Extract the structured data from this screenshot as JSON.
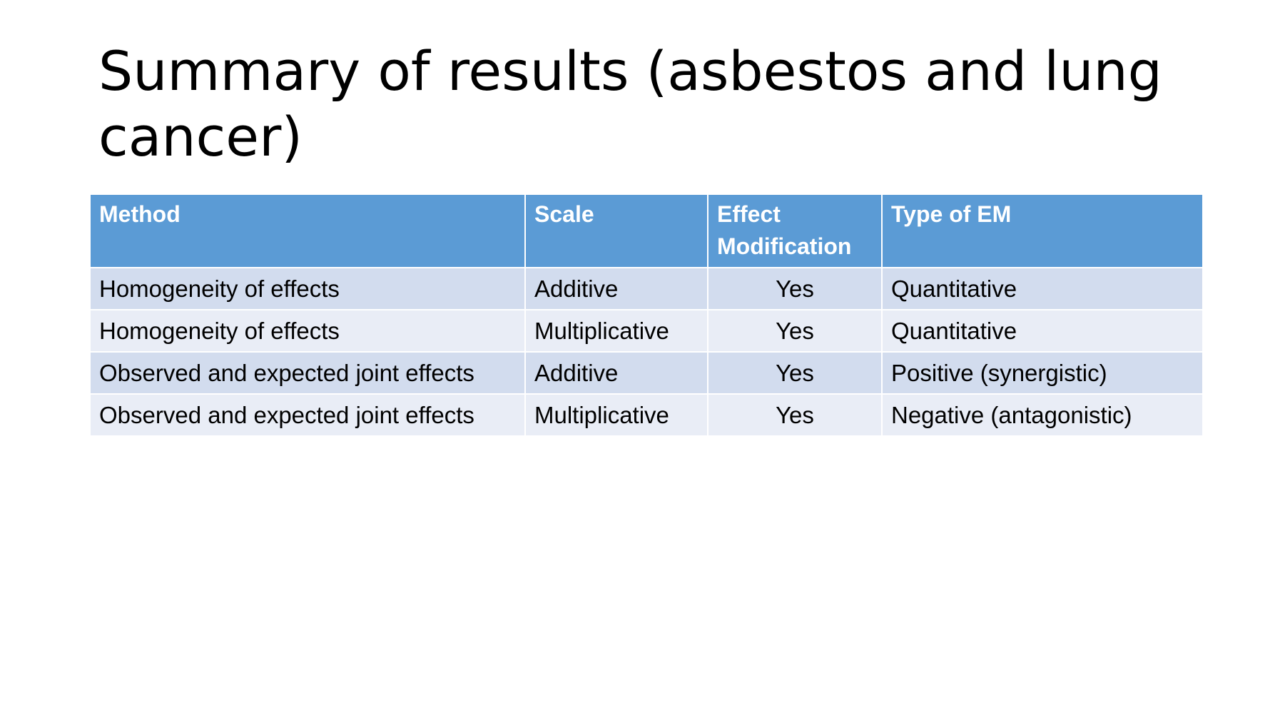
{
  "slide": {
    "title": "Summary of results (asbestos and lung cancer)"
  },
  "table": {
    "headers": {
      "method": "Method",
      "scale": "Scale",
      "effect_modification": "Effect Modification",
      "type_of_em": "Type of EM"
    },
    "rows": [
      {
        "method": "Homogeneity of effects",
        "scale": "Additive",
        "effect_modification": "Yes",
        "type_of_em": "Quantitative"
      },
      {
        "method": "Homogeneity of effects",
        "scale": "Multiplicative",
        "effect_modification": "Yes",
        "type_of_em": "Quantitative"
      },
      {
        "method": "Observed and expected joint effects",
        "scale": "Additive",
        "effect_modification": "Yes",
        "type_of_em": "Positive (synergistic)"
      },
      {
        "method": "Observed and expected joint effects",
        "scale": "Multiplicative",
        "effect_modification": "Yes",
        "type_of_em": "Negative (antagonistic)"
      }
    ]
  },
  "colors": {
    "header_background": "#5b9bd5",
    "row_band_dark": "#d2dcee",
    "row_band_light": "#e9edf6"
  }
}
